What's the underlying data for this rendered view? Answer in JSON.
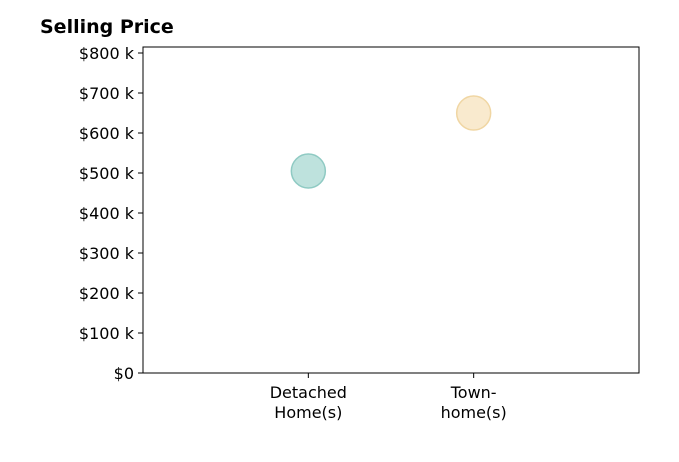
{
  "chart_data": {
    "type": "scatter",
    "title": "Selling Price",
    "xlabel": "",
    "ylabel": "",
    "categories": [
      [
        "Detached",
        "Home(s)"
      ],
      [
        "Town-",
        "home(s)"
      ]
    ],
    "values": [
      505000,
      650000
    ],
    "point_colors": [
      "#a8d8d2",
      "#f7e3bd"
    ],
    "point_edge_colors": [
      "#8fcac3",
      "#f0d6a3"
    ],
    "y_ticks": [
      0,
      100000,
      200000,
      300000,
      400000,
      500000,
      600000,
      700000,
      800000
    ],
    "y_tick_labels": [
      "$0",
      "$100 k",
      "$200 k",
      "$300 k",
      "$400 k",
      "$500 k",
      "$600 k",
      "$700 k",
      "$800 k"
    ],
    "ylim": [
      0,
      815000
    ],
    "xlim": [
      -1,
      2
    ],
    "grid": false,
    "legend": "none"
  }
}
